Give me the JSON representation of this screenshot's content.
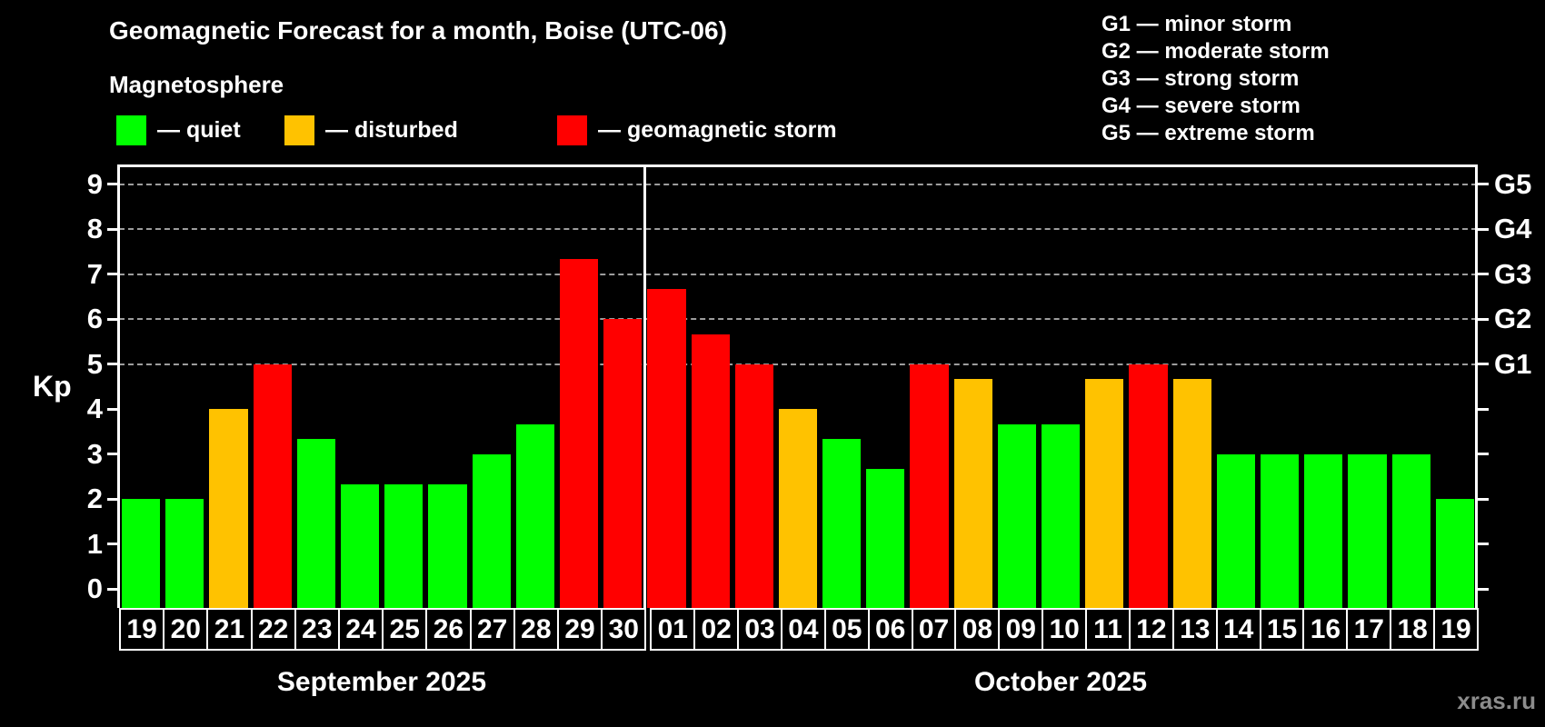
{
  "title": "Geomagnetic Forecast for a month, Boise (UTC-06)",
  "legend": {
    "title": "Magnetosphere",
    "items": [
      {
        "name": "quiet",
        "label": "— quiet",
        "color": "#00ff00"
      },
      {
        "name": "disturbed",
        "label": "— disturbed",
        "color": "#ffc200"
      },
      {
        "name": "storm",
        "label": "— geomagnetic storm",
        "color": "#ff0000"
      }
    ]
  },
  "g_legend": [
    "G1 — minor storm",
    "G2 — moderate storm",
    "G3 — strong storm",
    "G4 — severe storm",
    "G5 — extreme storm"
  ],
  "watermark": "xras.ru",
  "chart_data": {
    "type": "bar",
    "title": "Geomagnetic Forecast for a month, Boise (UTC-06)",
    "ylabel": "Kp",
    "y_ticks": [
      0,
      1,
      2,
      3,
      4,
      5,
      6,
      7,
      8,
      9
    ],
    "ylim": [
      0,
      9.4
    ],
    "grid_levels": [
      5,
      6,
      7,
      8,
      9
    ],
    "legend_position": "top",
    "g_scale": [
      {
        "label": "G1",
        "kp": 5
      },
      {
        "label": "G2",
        "kp": 6
      },
      {
        "label": "G3",
        "kp": 7
      },
      {
        "label": "G4",
        "kp": 8
      },
      {
        "label": "G5",
        "kp": 9
      }
    ],
    "status_colors": {
      "quiet": "#00ff00",
      "disturbed": "#ffc200",
      "storm": "#ff0000"
    },
    "months": [
      {
        "label": "September 2025",
        "days": [
          {
            "day": "19",
            "kp": 2.0,
            "status": "quiet"
          },
          {
            "day": "20",
            "kp": 2.0,
            "status": "quiet"
          },
          {
            "day": "21",
            "kp": 4.0,
            "status": "disturbed"
          },
          {
            "day": "22",
            "kp": 5.0,
            "status": "storm"
          },
          {
            "day": "23",
            "kp": 3.33,
            "status": "quiet"
          },
          {
            "day": "24",
            "kp": 2.33,
            "status": "quiet"
          },
          {
            "day": "25",
            "kp": 2.33,
            "status": "quiet"
          },
          {
            "day": "26",
            "kp": 2.33,
            "status": "quiet"
          },
          {
            "day": "27",
            "kp": 3.0,
            "status": "quiet"
          },
          {
            "day": "28",
            "kp": 3.67,
            "status": "quiet"
          },
          {
            "day": "29",
            "kp": 7.33,
            "status": "storm"
          },
          {
            "day": "30",
            "kp": 6.0,
            "status": "storm"
          }
        ]
      },
      {
        "label": "October 2025",
        "days": [
          {
            "day": "01",
            "kp": 6.67,
            "status": "storm"
          },
          {
            "day": "02",
            "kp": 5.67,
            "status": "storm"
          },
          {
            "day": "03",
            "kp": 5.0,
            "status": "storm"
          },
          {
            "day": "04",
            "kp": 4.0,
            "status": "disturbed"
          },
          {
            "day": "05",
            "kp": 3.33,
            "status": "quiet"
          },
          {
            "day": "06",
            "kp": 2.67,
            "status": "quiet"
          },
          {
            "day": "07",
            "kp": 5.0,
            "status": "storm"
          },
          {
            "day": "08",
            "kp": 4.67,
            "status": "disturbed"
          },
          {
            "day": "09",
            "kp": 3.67,
            "status": "quiet"
          },
          {
            "day": "10",
            "kp": 3.67,
            "status": "quiet"
          },
          {
            "day": "11",
            "kp": 4.67,
            "status": "disturbed"
          },
          {
            "day": "12",
            "kp": 5.0,
            "status": "storm"
          },
          {
            "day": "13",
            "kp": 4.67,
            "status": "disturbed"
          },
          {
            "day": "14",
            "kp": 3.0,
            "status": "quiet"
          },
          {
            "day": "15",
            "kp": 3.0,
            "status": "quiet"
          },
          {
            "day": "16",
            "kp": 3.0,
            "status": "quiet"
          },
          {
            "day": "17",
            "kp": 3.0,
            "status": "quiet"
          },
          {
            "day": "18",
            "kp": 3.0,
            "status": "quiet"
          },
          {
            "day": "19",
            "kp": 2.0,
            "status": "quiet"
          }
        ]
      }
    ]
  }
}
